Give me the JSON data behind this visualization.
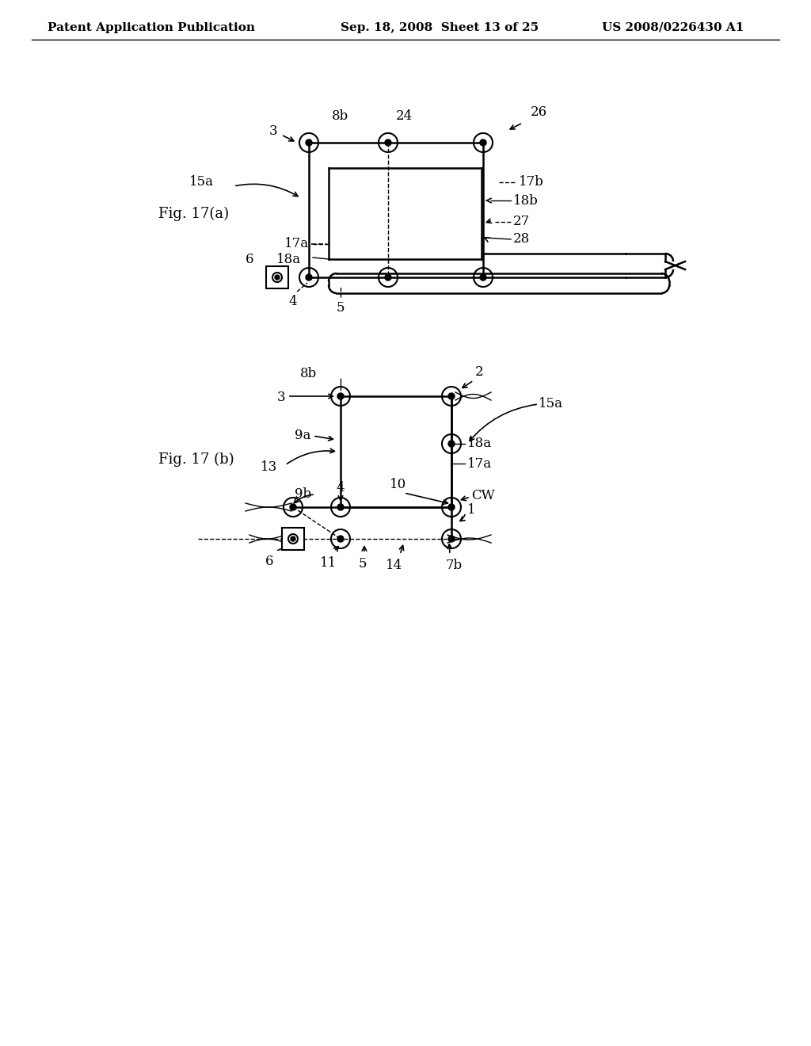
{
  "fig_width": 10.24,
  "fig_height": 13.2,
  "bg_color": "#ffffff",
  "header_left": "Patent Application Publication",
  "header_mid": "Sep. 18, 2008  Sheet 13 of 25",
  "header_right": "US 2008/0226430 A1",
  "fig17a_label": "Fig. 17(a)",
  "fig17b_label": "Fig. 17 (b)"
}
